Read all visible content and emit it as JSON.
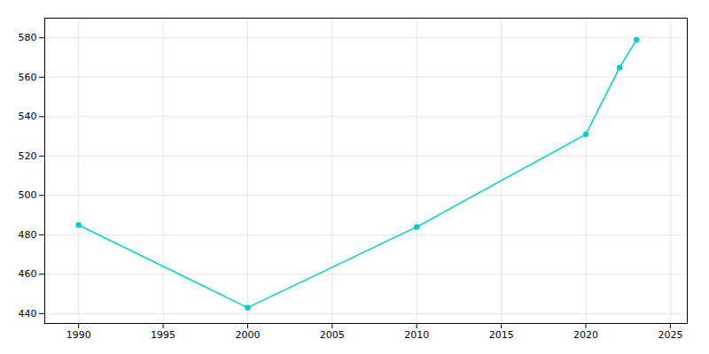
{
  "chart_data": {
    "type": "line",
    "x": [
      1990,
      2000,
      2010,
      2020,
      2022,
      2023
    ],
    "values": [
      485,
      443,
      484,
      531,
      565,
      579
    ],
    "color": "#00CDCD",
    "marker": "circle",
    "xlim": [
      1988,
      2026
    ],
    "ylim": [
      435,
      590
    ],
    "xticks": [
      1990,
      1995,
      2000,
      2005,
      2010,
      2015,
      2020,
      2025
    ],
    "yticks": [
      440,
      460,
      480,
      500,
      520,
      540,
      560,
      580
    ],
    "grid": true
  }
}
